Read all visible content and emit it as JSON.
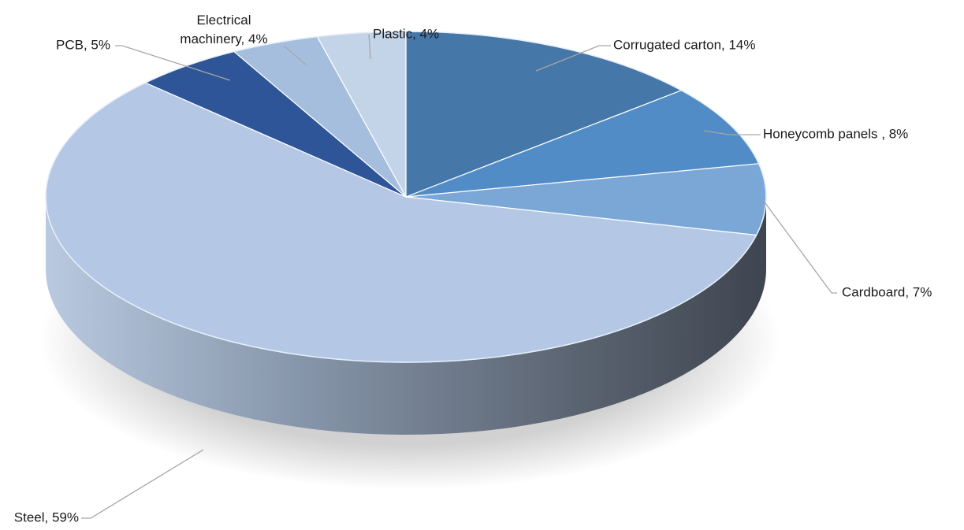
{
  "chart_data": {
    "type": "pie",
    "style": "3d",
    "title": "",
    "start": "12 o'clock",
    "direction": "clockwise",
    "slices": [
      {
        "label": "Corrugated carton",
        "value": 14,
        "text": "Corrugated carton, 14%",
        "color": "#4577A8"
      },
      {
        "label": "Honeycomb panels",
        "value": 8,
        "text": "Honeycomb panels , 8%",
        "color": "#518CC6"
      },
      {
        "label": "Cardboard",
        "value": 7,
        "text": "Cardboard, 7%",
        "color": "#7BA7D7"
      },
      {
        "label": "Steel",
        "value": 59,
        "text": "Steel, 59%",
        "color": "#B4C8E6"
      },
      {
        "label": "PCB",
        "value": 5,
        "text": "PCB, 5%",
        "color": "#2E5597"
      },
      {
        "label": "Electrical machinery",
        "value": 4,
        "text_lines": [
          "Electrical",
          "machinery, 4%"
        ],
        "color": "#A6BEDD"
      },
      {
        "label": "Plastic",
        "value": 4,
        "text": "Plastic, 4%",
        "color": "#C3D3E8"
      }
    ],
    "legend": "none",
    "labels": "outside with leader lines"
  }
}
